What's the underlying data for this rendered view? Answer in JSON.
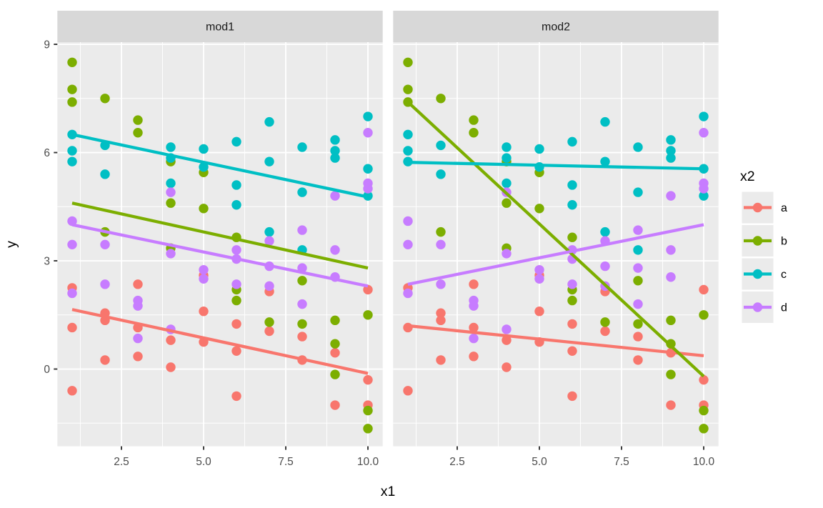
{
  "chart_data": {
    "type": "scatter",
    "title": "",
    "facets": [
      "mod1",
      "mod2"
    ],
    "xlabel": "x1",
    "ylabel": "y",
    "legend_title": "x2",
    "x_ticks": [
      2.5,
      5.0,
      7.5,
      10.0
    ],
    "x_tick_labels": [
      "2.5",
      "5.0",
      "7.5",
      "10.0"
    ],
    "x_minor_ticks": [
      1.25,
      3.75,
      6.25,
      8.75
    ],
    "y_ticks": [
      0,
      3,
      6,
      9
    ],
    "y_tick_labels": [
      "0",
      "3",
      "6",
      "9"
    ],
    "y_minor_ticks": [
      -1.5,
      1.5,
      4.5,
      7.5
    ],
    "xlim": [
      0.55,
      10.45
    ],
    "ylim": [
      -2.15,
      9.06
    ],
    "grid": "on",
    "legend_position": "right",
    "panel_bg": "#EBEBEB",
    "strip_bg": "#D8D8D8",
    "grid_color": "#FFFFFF",
    "tick_color": "#333333",
    "groups": [
      {
        "name": "a",
        "color": "#F8766D",
        "points": [
          [
            1,
            2.25
          ],
          [
            1,
            1.15
          ],
          [
            1,
            -0.6
          ],
          [
            2,
            1.55
          ],
          [
            2,
            1.35
          ],
          [
            2,
            0.25
          ],
          [
            3,
            2.35
          ],
          [
            3,
            1.15
          ],
          [
            3,
            0.35
          ],
          [
            4,
            0.8
          ],
          [
            4,
            0.05
          ],
          [
            5,
            2.6
          ],
          [
            5,
            1.6
          ],
          [
            5,
            0.75
          ],
          [
            6,
            1.25
          ],
          [
            6,
            0.5
          ],
          [
            6,
            -0.75
          ],
          [
            7,
            2.15
          ],
          [
            7,
            1.05
          ],
          [
            8,
            0.9
          ],
          [
            8,
            0.25
          ],
          [
            9,
            0.45
          ],
          [
            9,
            -1.0
          ],
          [
            10,
            2.2
          ],
          [
            10,
            -0.3
          ],
          [
            10,
            -1.0
          ]
        ]
      },
      {
        "name": "b",
        "color": "#7CAE00",
        "points": [
          [
            1,
            8.5
          ],
          [
            1,
            7.75
          ],
          [
            1,
            7.4
          ],
          [
            2,
            7.5
          ],
          [
            2,
            3.8
          ],
          [
            3,
            6.9
          ],
          [
            3,
            6.55
          ],
          [
            4,
            5.75
          ],
          [
            4,
            4.6
          ],
          [
            4,
            3.35
          ],
          [
            5,
            5.45
          ],
          [
            5,
            4.45
          ],
          [
            6,
            3.65
          ],
          [
            6,
            2.2
          ],
          [
            6,
            1.9
          ],
          [
            7,
            1.3
          ],
          [
            8,
            2.45
          ],
          [
            8,
            1.25
          ],
          [
            9,
            1.35
          ],
          [
            9,
            0.7
          ],
          [
            9,
            -0.15
          ],
          [
            10,
            1.5
          ],
          [
            10,
            -1.15
          ],
          [
            10,
            -1.65
          ]
        ]
      },
      {
        "name": "c",
        "color": "#00BFC4",
        "points": [
          [
            1,
            6.5
          ],
          [
            1,
            6.05
          ],
          [
            1,
            5.75
          ],
          [
            2,
            6.2
          ],
          [
            2,
            5.4
          ],
          [
            4,
            6.15
          ],
          [
            4,
            5.85
          ],
          [
            4,
            5.15
          ],
          [
            5,
            6.1
          ],
          [
            5,
            5.6
          ],
          [
            6,
            6.3
          ],
          [
            6,
            5.1
          ],
          [
            6,
            4.55
          ],
          [
            7,
            6.85
          ],
          [
            7,
            5.75
          ],
          [
            7,
            3.8
          ],
          [
            8,
            6.15
          ],
          [
            8,
            4.9
          ],
          [
            8,
            3.3
          ],
          [
            9,
            6.35
          ],
          [
            9,
            6.05
          ],
          [
            9,
            5.85
          ],
          [
            10,
            7.0
          ],
          [
            10,
            5.55
          ],
          [
            10,
            4.8
          ]
        ]
      },
      {
        "name": "d",
        "color": "#C77CFF",
        "points": [
          [
            1,
            4.1
          ],
          [
            1,
            3.45
          ],
          [
            1,
            2.1
          ],
          [
            2,
            3.45
          ],
          [
            2,
            2.35
          ],
          [
            3,
            1.9
          ],
          [
            3,
            1.75
          ],
          [
            3,
            0.85
          ],
          [
            4,
            4.9
          ],
          [
            4,
            3.2
          ],
          [
            4,
            1.1
          ],
          [
            5,
            2.75
          ],
          [
            5,
            2.5
          ],
          [
            6,
            3.3
          ],
          [
            6,
            3.05
          ],
          [
            6,
            2.35
          ],
          [
            7,
            3.55
          ],
          [
            7,
            2.85
          ],
          [
            7,
            2.3
          ],
          [
            8,
            3.85
          ],
          [
            8,
            2.8
          ],
          [
            8,
            1.8
          ],
          [
            9,
            4.8
          ],
          [
            9,
            3.3
          ],
          [
            9,
            2.55
          ],
          [
            10,
            6.55
          ],
          [
            10,
            5.15
          ],
          [
            10,
            5.0
          ]
        ]
      }
    ],
    "fitted_lines": {
      "mod1": [
        {
          "group": "a",
          "color": "#F8766D",
          "x1": 1,
          "y1": 1.65,
          "x2": 10,
          "y2": -0.12
        },
        {
          "group": "b",
          "color": "#7CAE00",
          "x1": 1,
          "y1": 4.6,
          "x2": 10,
          "y2": 2.8
        },
        {
          "group": "c",
          "color": "#00BFC4",
          "x1": 1,
          "y1": 6.5,
          "x2": 10,
          "y2": 4.77
        },
        {
          "group": "d",
          "color": "#C77CFF",
          "x1": 1,
          "y1": 4.0,
          "x2": 10,
          "y2": 2.3
        }
      ],
      "mod2": [
        {
          "group": "a",
          "color": "#F8766D",
          "x1": 1,
          "y1": 1.2,
          "x2": 10,
          "y2": 0.37
        },
        {
          "group": "b",
          "color": "#7CAE00",
          "x1": 1,
          "y1": 7.4,
          "x2": 10,
          "y2": -0.2
        },
        {
          "group": "c",
          "color": "#00BFC4",
          "x1": 1,
          "y1": 5.73,
          "x2": 10,
          "y2": 5.55
        },
        {
          "group": "d",
          "color": "#C77CFF",
          "x1": 1,
          "y1": 2.35,
          "x2": 10,
          "y2": 4.0
        }
      ]
    },
    "legend": {
      "title": "x2",
      "items": [
        {
          "label": "a",
          "color": "#F8766D"
        },
        {
          "label": "b",
          "color": "#7CAE00"
        },
        {
          "label": "c",
          "color": "#00BFC4"
        },
        {
          "label": "d",
          "color": "#C77CFF"
        }
      ]
    }
  }
}
